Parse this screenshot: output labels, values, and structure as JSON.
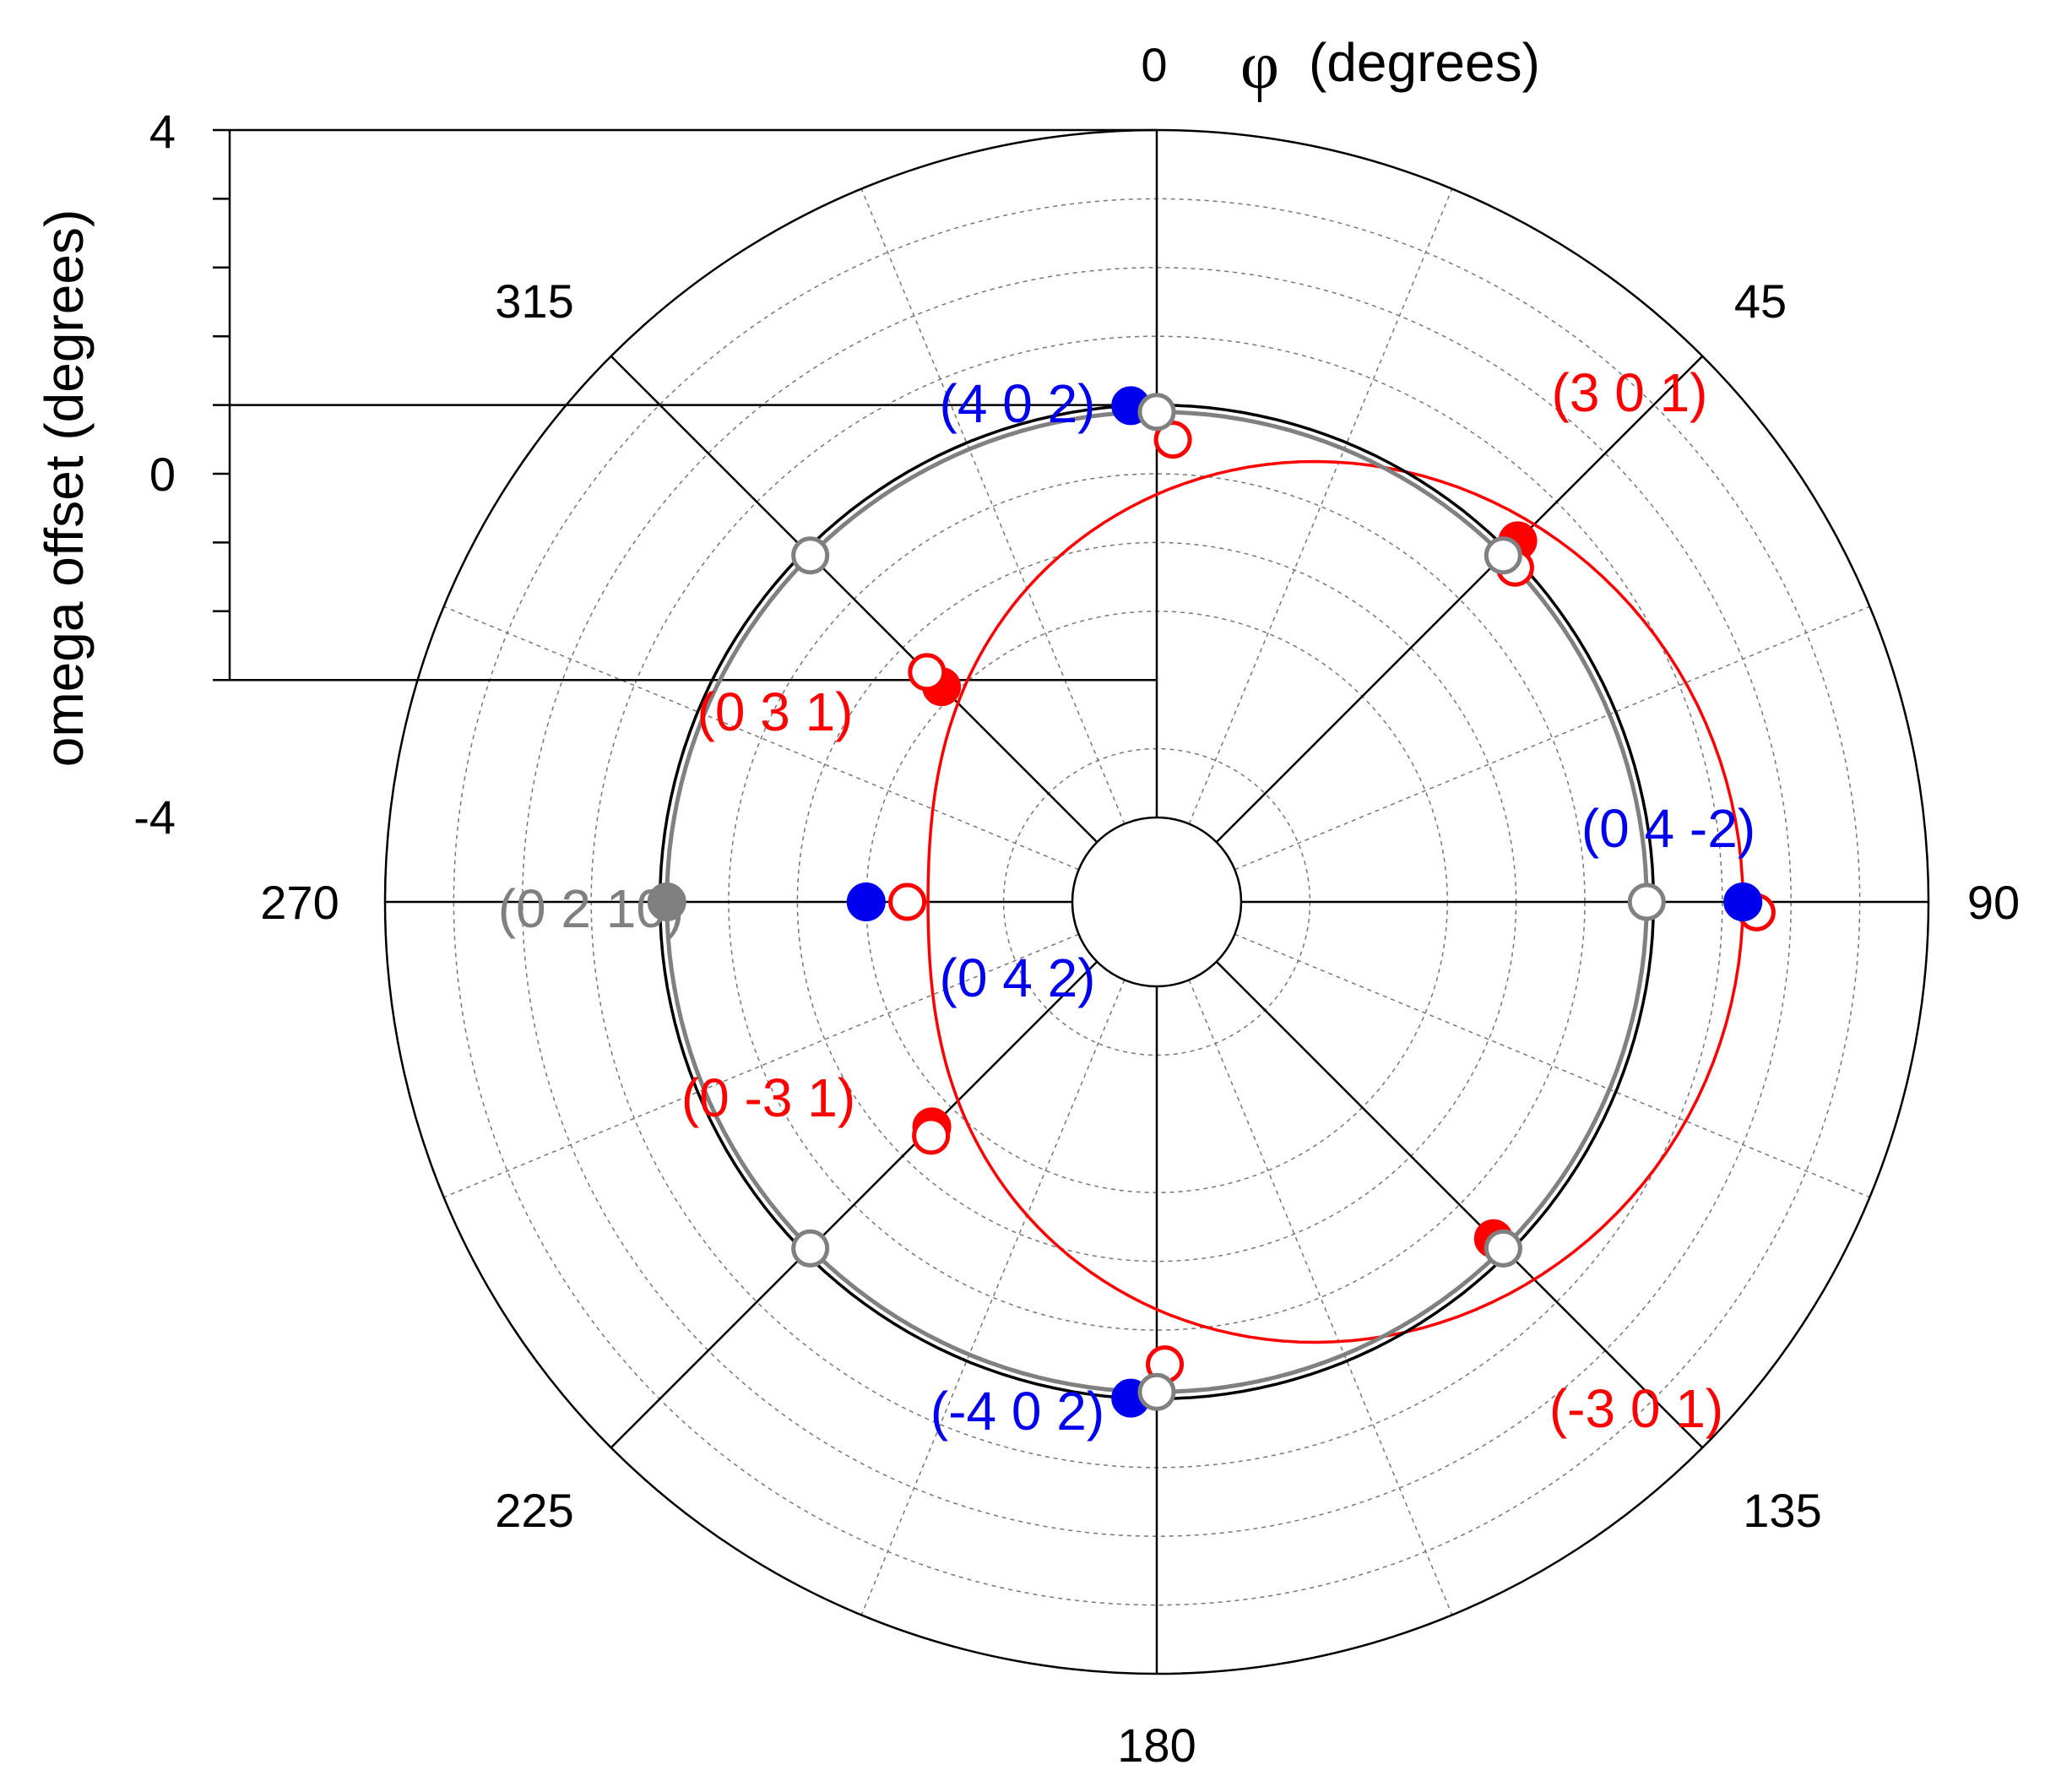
{
  "chart_data": {
    "type": "scatter",
    "coordinate_system": "polar",
    "theta_label": "(degrees)",
    "theta_symbol": "φ",
    "theta_start_label": "0",
    "theta_ticks": [
      "0",
      "45",
      "90",
      "135",
      "180",
      "225",
      "270",
      "315"
    ],
    "radial_label": "omega offset (degrees)",
    "radial_ticks": [
      "4",
      "0",
      "-4"
    ],
    "radial_range": [
      -6,
      4
    ],
    "grid": true,
    "colors": {
      "red": "#ff0000",
      "blue": "#0000ee",
      "gray": "#808080",
      "black": "#000000"
    },
    "series": [
      {
        "color": "red",
        "marker": "filled-circle",
        "points": [
          {
            "phi": 45,
            "omega": 0.2
          },
          {
            "phi": 135,
            "omega": -0.3
          },
          {
            "phi": 315,
            "omega": -2.8
          },
          {
            "phi": 225,
            "omega": -2.6
          }
        ]
      },
      {
        "color": "red",
        "marker": "open-circle",
        "points": [
          {
            "phi": 2,
            "omega": -0.5
          },
          {
            "phi": 47,
            "omega": -0.1
          },
          {
            "phi": 91,
            "omega": 1.5
          },
          {
            "phi": 135,
            "omega": -0.1
          },
          {
            "phi": 179,
            "omega": -0.5
          },
          {
            "phi": 224,
            "omega": -2.5
          },
          {
            "phi": 270,
            "omega": -3.6
          },
          {
            "phi": 315,
            "omega": -2.5
          }
        ]
      },
      {
        "color": "red",
        "marker": "line",
        "curve": "fit",
        "fit": {
          "a": -1.3,
          "b": 2.6,
          "phase_deg": 90
        }
      },
      {
        "color": "blue",
        "marker": "filled-circle",
        "points": [
          {
            "phi": -3,
            "omega": 0.0
          },
          {
            "phi": 90,
            "omega": 1.3
          },
          {
            "phi": 183,
            "omega": 0.0
          },
          {
            "phi": 270,
            "omega": -3.0
          }
        ]
      },
      {
        "color": "gray",
        "marker": "open-circle",
        "points": [
          {
            "phi": 0,
            "omega": -0.1
          },
          {
            "phi": 45,
            "omega": -0.1
          },
          {
            "phi": 90,
            "omega": -0.1
          },
          {
            "phi": 135,
            "omega": -0.1
          },
          {
            "phi": 180,
            "omega": -0.1
          },
          {
            "phi": 225,
            "omega": -0.1
          },
          {
            "phi": 270,
            "omega": -0.1
          },
          {
            "phi": 315,
            "omega": -0.1
          }
        ]
      },
      {
        "color": "gray",
        "marker": "filled-circle",
        "points": [
          {
            "phi": 270,
            "omega": -0.1
          }
        ]
      },
      {
        "color": "gray",
        "marker": "line",
        "curve": "circle",
        "omega": -0.1
      },
      {
        "color": "black",
        "marker": "line",
        "curve": "circle",
        "omega": 0.0
      }
    ],
    "annotations": [
      {
        "text": "(4 0 2)",
        "color": "blue"
      },
      {
        "text": "(3 0 1)",
        "color": "red"
      },
      {
        "text": "(0 3 1)",
        "color": "red"
      },
      {
        "text": "(0 4 -2)",
        "color": "blue"
      },
      {
        "text": "(0 2 10)",
        "color": "gray"
      },
      {
        "text": "(0 4 2)",
        "color": "blue"
      },
      {
        "text": "(0 -3 1)",
        "color": "red"
      },
      {
        "text": "(-4 0 2)",
        "color": "blue"
      },
      {
        "text": "(-3 0 1)",
        "color": "red"
      }
    ]
  }
}
